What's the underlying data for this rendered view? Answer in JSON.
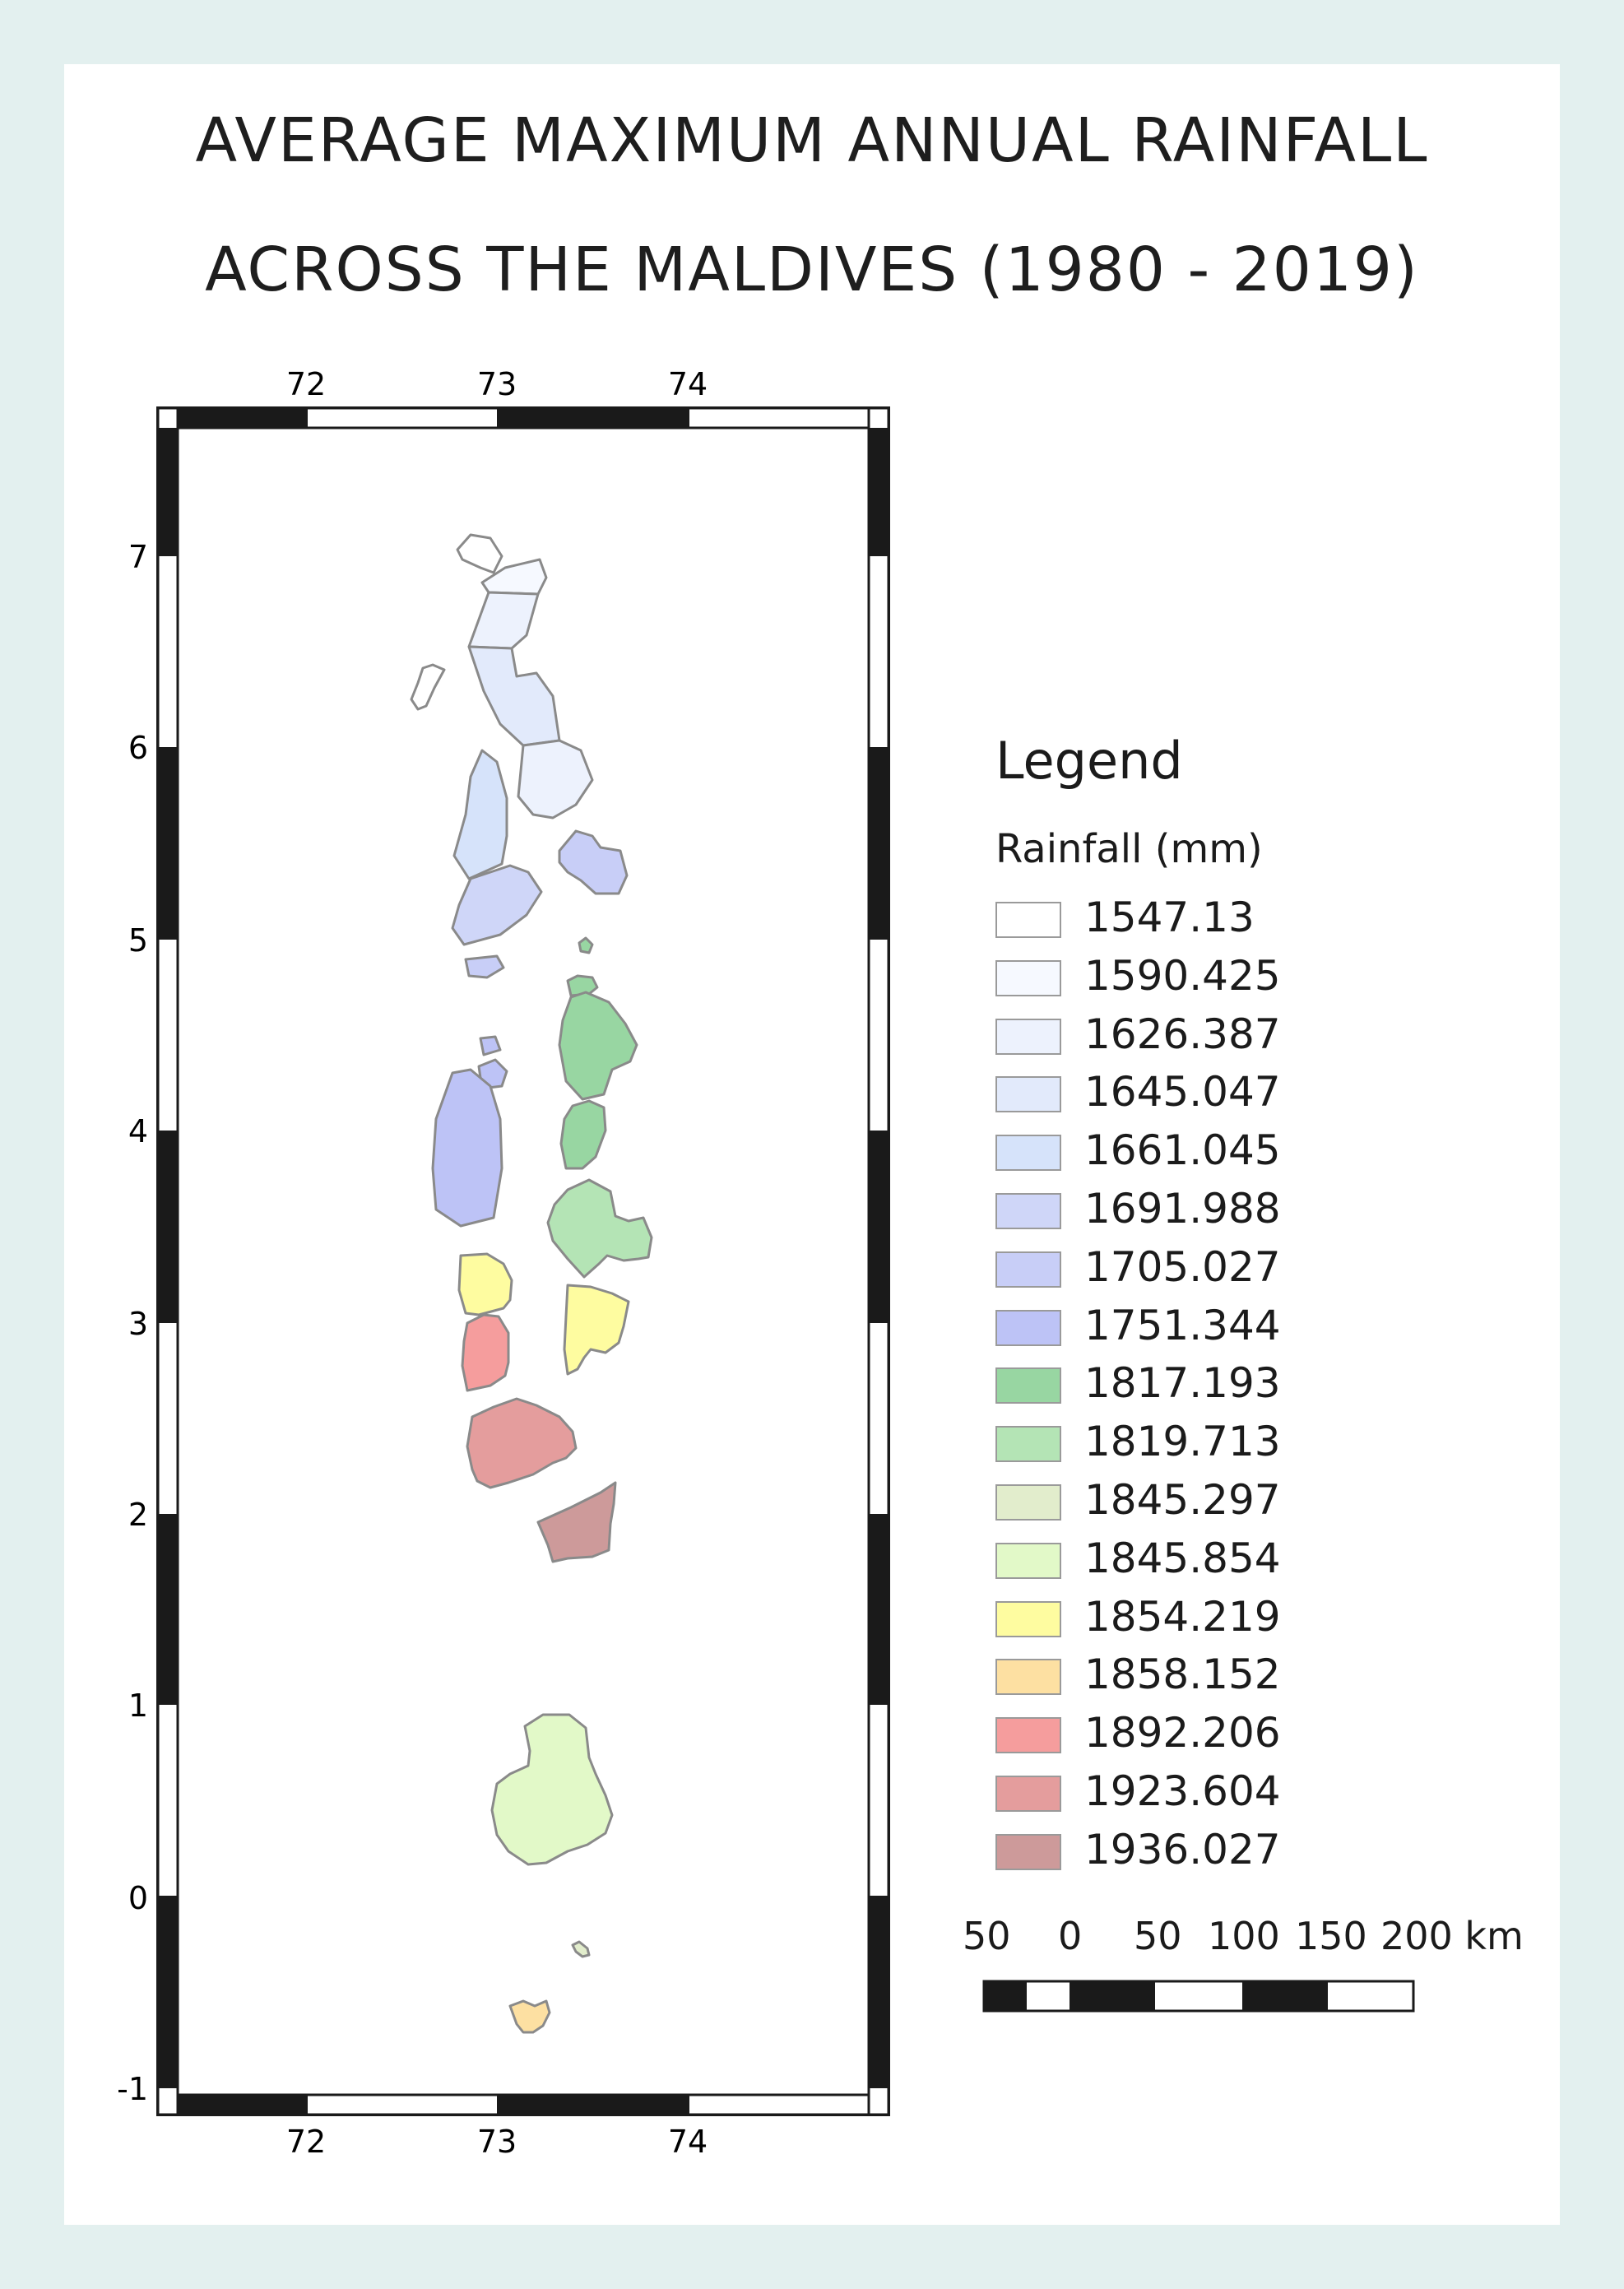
{
  "title": {
    "line1": "AVERAGE MAXIMUM ANNUAL RAINFALL",
    "line2": "ACROSS THE MALDIVES (1980 - 2019)"
  },
  "frame": {
    "top_ticks": [
      "72",
      "73",
      "74"
    ],
    "bottom_ticks": [
      "72",
      "73",
      "74"
    ],
    "left_ticks": [
      "7",
      "6",
      "5",
      "4",
      "3",
      "2",
      "1",
      "0",
      "-1"
    ]
  },
  "legend": {
    "title": "Legend",
    "subtitle": "Rainfall (mm)",
    "classes": [
      {
        "label": "1547.13",
        "color": "#ffffff"
      },
      {
        "label": "1590.425",
        "color": "#f6f9ff"
      },
      {
        "label": "1626.387",
        "color": "#edf2fd"
      },
      {
        "label": "1645.047",
        "color": "#e2eafb"
      },
      {
        "label": "1661.045",
        "color": "#d6e3fa"
      },
      {
        "label": "1691.988",
        "color": "#cfd6f8"
      },
      {
        "label": "1705.027",
        "color": "#c8cef7"
      },
      {
        "label": "1751.344",
        "color": "#bdc3f6"
      },
      {
        "label": "1817.193",
        "color": "#98d6a2"
      },
      {
        "label": "1819.713",
        "color": "#b4e4b5"
      },
      {
        "label": "1845.297",
        "color": "#e2edcc"
      },
      {
        "label": "1845.854",
        "color": "#e2f9c8"
      },
      {
        "label": "1854.219",
        "color": "#fefca0"
      },
      {
        "label": "1858.152",
        "color": "#fde0a2"
      },
      {
        "label": "1892.206",
        "color": "#f59d9d"
      },
      {
        "label": "1923.604",
        "color": "#e49d9d"
      },
      {
        "label": "1936.027",
        "color": "#cd9a9a"
      }
    ]
  },
  "scale_bar": {
    "labels": [
      "50",
      "0",
      "50",
      "100",
      "150",
      "200 km"
    ]
  },
  "atolls": [
    {
      "name": "north-tip-1",
      "class": 0
    },
    {
      "name": "north-1",
      "class": 1
    },
    {
      "name": "north-2",
      "class": 2
    },
    {
      "name": "north-3",
      "class": 3
    },
    {
      "name": "north-4",
      "class": 2
    },
    {
      "name": "northwest-islet",
      "class": 0
    },
    {
      "name": "west-1",
      "class": 4
    },
    {
      "name": "west-2",
      "class": 5
    },
    {
      "name": "east-1",
      "class": 6
    },
    {
      "name": "islet-a",
      "class": 6
    },
    {
      "name": "islet-b",
      "class": 7
    },
    {
      "name": "islet-c",
      "class": 7
    },
    {
      "name": "west-3",
      "class": 7
    },
    {
      "name": "islet-green-a",
      "class": 8
    },
    {
      "name": "islet-green-b",
      "class": 8
    },
    {
      "name": "male",
      "class": 8
    },
    {
      "name": "east-2",
      "class": 8
    },
    {
      "name": "east-3",
      "class": 9
    },
    {
      "name": "yellow-west",
      "class": 12
    },
    {
      "name": "yellow-east",
      "class": 12
    },
    {
      "name": "red-1",
      "class": 14
    },
    {
      "name": "red-2",
      "class": 15
    },
    {
      "name": "red-3",
      "class": 16
    },
    {
      "name": "south-large",
      "class": 11
    },
    {
      "name": "south-islet",
      "class": 10
    },
    {
      "name": "south-tip",
      "class": 13
    }
  ]
}
